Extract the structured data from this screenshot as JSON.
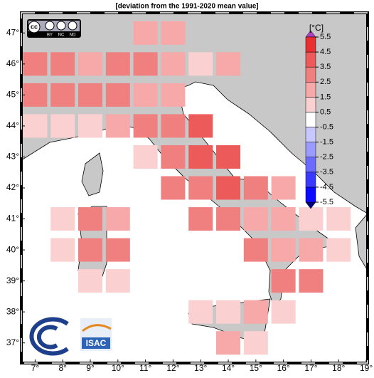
{
  "map": {
    "title": "[deviation from the 1991-2020 mean value]",
    "xlim": [
      6.5,
      19.05
    ],
    "ylim": [
      36.35,
      47.65
    ],
    "xticks": [
      {
        "value": 7,
        "label": "7°"
      },
      {
        "value": 8,
        "label": "8°"
      },
      {
        "value": 9,
        "label": "9°"
      },
      {
        "value": 10,
        "label": "10°"
      },
      {
        "value": 11,
        "label": "11°"
      },
      {
        "value": 12,
        "label": "12°"
      },
      {
        "value": 13,
        "label": "13°"
      },
      {
        "value": 14,
        "label": "14°"
      },
      {
        "value": 15,
        "label": "15°"
      },
      {
        "value": 16,
        "label": "16°"
      },
      {
        "value": 17,
        "label": "17°"
      },
      {
        "value": 18,
        "label": "18°"
      },
      {
        "value": 19,
        "label": "19°"
      }
    ],
    "yticks": [
      {
        "value": 37,
        "label": "37°"
      },
      {
        "value": 38,
        "label": "38°"
      },
      {
        "value": 39,
        "label": "39°"
      },
      {
        "value": 40,
        "label": "40°"
      },
      {
        "value": 41,
        "label": "41°"
      },
      {
        "value": 42,
        "label": "42°"
      },
      {
        "value": 43,
        "label": "43°"
      },
      {
        "value": 44,
        "label": "44°"
      },
      {
        "value": 45,
        "label": "45°"
      },
      {
        "value": 46,
        "label": "46°"
      },
      {
        "value": 47,
        "label": "47°"
      }
    ],
    "cells": [
      {
        "lon": 11,
        "lat": 47,
        "value": 2.0
      },
      {
        "lon": 12,
        "lat": 47,
        "value": 2.3
      },
      {
        "lon": 7,
        "lat": 46,
        "value": 3.0
      },
      {
        "lon": 8,
        "lat": 46,
        "value": 3.1
      },
      {
        "lon": 9,
        "lat": 46,
        "value": 2.4
      },
      {
        "lon": 10,
        "lat": 46,
        "value": 2.6
      },
      {
        "lon": 11,
        "lat": 46,
        "value": 3.3
      },
      {
        "lon": 12,
        "lat": 46,
        "value": 2.4
      },
      {
        "lon": 13,
        "lat": 46,
        "value": 1.0
      },
      {
        "lon": 14,
        "lat": 46,
        "value": 2.1
      },
      {
        "lon": 7,
        "lat": 45,
        "value": 3.1
      },
      {
        "lon": 8,
        "lat": 45,
        "value": 3.2
      },
      {
        "lon": 9,
        "lat": 45,
        "value": 2.5
      },
      {
        "lon": 10,
        "lat": 45,
        "value": 3.0
      },
      {
        "lon": 11,
        "lat": 45,
        "value": 2.4
      },
      {
        "lon": 12,
        "lat": 45,
        "value": 2.0
      },
      {
        "lon": 7,
        "lat": 44,
        "value": 1.4
      },
      {
        "lon": 8,
        "lat": 44,
        "value": 1.1
      },
      {
        "lon": 9,
        "lat": 44,
        "value": 1.2
      },
      {
        "lon": 10,
        "lat": 44,
        "value": 1.6
      },
      {
        "lon": 11,
        "lat": 44,
        "value": 3.2
      },
      {
        "lon": 12,
        "lat": 44,
        "value": 3.1
      },
      {
        "lon": 13,
        "lat": 44,
        "value": 3.6
      },
      {
        "lon": 11,
        "lat": 43,
        "value": 1.4
      },
      {
        "lon": 12,
        "lat": 43,
        "value": 2.6
      },
      {
        "lon": 13,
        "lat": 43,
        "value": 3.5
      },
      {
        "lon": 14,
        "lat": 43,
        "value": 3.6
      },
      {
        "lon": 12,
        "lat": 42,
        "value": 3.0
      },
      {
        "lon": 13,
        "lat": 42,
        "value": 2.6
      },
      {
        "lon": 14,
        "lat": 42,
        "value": 3.6
      },
      {
        "lon": 15,
        "lat": 42,
        "value": 3.2
      },
      {
        "lon": 16,
        "lat": 42,
        "value": 2.0
      },
      {
        "lon": 8,
        "lat": 41,
        "value": 1.3
      },
      {
        "lon": 9,
        "lat": 41,
        "value": 2.7
      },
      {
        "lon": 10,
        "lat": 41,
        "value": 2.2
      },
      {
        "lon": 13,
        "lat": 41,
        "value": 2.6
      },
      {
        "lon": 14,
        "lat": 41,
        "value": 2.6
      },
      {
        "lon": 15,
        "lat": 41,
        "value": 2.1
      },
      {
        "lon": 16,
        "lat": 41,
        "value": 1.8
      },
      {
        "lon": 17,
        "lat": 41,
        "value": 1.2
      },
      {
        "lon": 18,
        "lat": 41,
        "value": 1.1
      },
      {
        "lon": 8,
        "lat": 40,
        "value": 1.4
      },
      {
        "lon": 9,
        "lat": 40,
        "value": 2.6
      },
      {
        "lon": 10,
        "lat": 40,
        "value": 2.7
      },
      {
        "lon": 15,
        "lat": 40,
        "value": 2.6
      },
      {
        "lon": 16,
        "lat": 40,
        "value": 2.2
      },
      {
        "lon": 17,
        "lat": 40,
        "value": 1.5
      },
      {
        "lon": 18,
        "lat": 40,
        "value": 1.2
      },
      {
        "lon": 9,
        "lat": 39,
        "value": 1.1
      },
      {
        "lon": 10,
        "lat": 39,
        "value": 1.2
      },
      {
        "lon": 16,
        "lat": 39,
        "value": 2.6
      },
      {
        "lon": 17,
        "lat": 39,
        "value": 2.6
      },
      {
        "lon": 13,
        "lat": 38,
        "value": 1.3
      },
      {
        "lon": 14,
        "lat": 38,
        "value": 1.2
      },
      {
        "lon": 15,
        "lat": 38,
        "value": 1.6
      },
      {
        "lon": 16,
        "lat": 38,
        "value": 1.3
      },
      {
        "lon": 14,
        "lat": 37,
        "value": 1.5
      },
      {
        "lon": 15,
        "lat": 37,
        "value": 1.1
      }
    ],
    "colorbar": {
      "unit": "[°C]",
      "ticks": [
        -5.5,
        -4.5,
        -3.5,
        -2.5,
        -1.5,
        -0.5,
        0.5,
        1.5,
        2.5,
        3.5,
        4.5,
        5.5
      ],
      "colors": [
        "#0a0aff",
        "#3a3aff",
        "#6b6bff",
        "#9a9aff",
        "#c8c8ff",
        "#ffffff",
        "#fbd0d0",
        "#f7a8a8",
        "#f08080",
        "#ec5a5a",
        "#e83030"
      ],
      "over_color": "#b040c0",
      "under_color": "#00007f"
    },
    "license": {
      "cc": "cc",
      "labels": [
        "BY",
        "NC",
        "ND"
      ]
    },
    "logo": "ISAC"
  }
}
